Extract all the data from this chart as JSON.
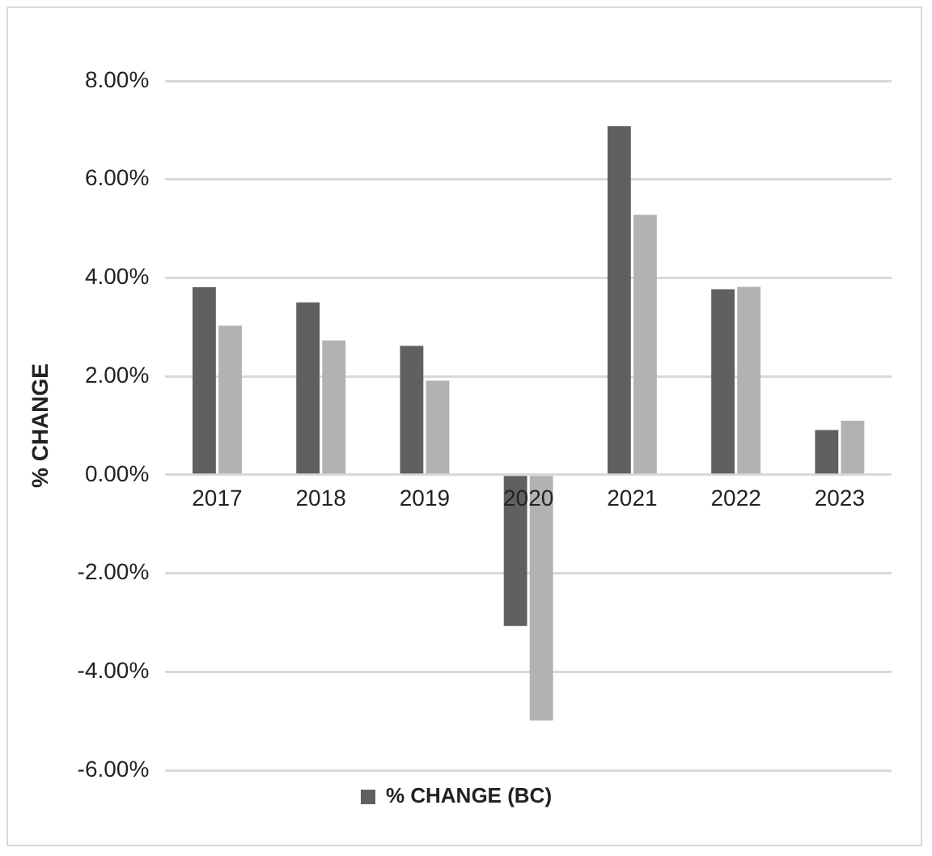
{
  "chart_data": {
    "type": "bar",
    "ylabel": "% CHANGE",
    "categories": [
      "2017",
      "2018",
      "2019",
      "2020",
      "2021",
      "2022",
      "2023"
    ],
    "series": [
      {
        "name": "% CHANGE (BC)",
        "color": "#606060",
        "values": [
          3.81,
          3.5,
          2.62,
          -3.07,
          7.08,
          3.77,
          0.91
        ]
      },
      {
        "color": "#b2b2b2",
        "values": [
          3.03,
          2.73,
          1.91,
          -4.99,
          5.28,
          3.82,
          1.1
        ]
      }
    ],
    "ylim": [
      -6,
      8
    ],
    "yticks": [
      {
        "value": -6,
        "label": "-6.00%"
      },
      {
        "value": -4,
        "label": "-4.00%"
      },
      {
        "value": -2,
        "label": "-2.00%"
      },
      {
        "value": 0,
        "label": "0.00%"
      },
      {
        "value": 2,
        "label": "2.00%"
      },
      {
        "value": 4,
        "label": "4.00%"
      },
      {
        "value": 6,
        "label": "6.00%"
      },
      {
        "value": 8,
        "label": "8.00%"
      }
    ],
    "grid": "y",
    "legend": "bottom"
  }
}
